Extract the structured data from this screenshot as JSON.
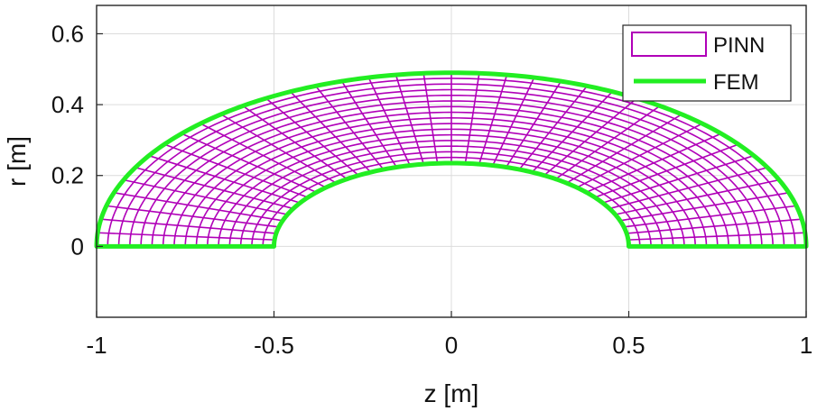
{
  "chart_data": {
    "type": "line",
    "xlabel": "z [m]",
    "ylabel": "r [m]",
    "xlim": [
      -1,
      1
    ],
    "ylim": [
      -0.2,
      0.68
    ],
    "xticks": [
      -1,
      -0.5,
      0,
      0.5,
      1
    ],
    "xtick_labels": [
      "-1",
      "-0.5",
      "0",
      "0.5",
      "1"
    ],
    "yticks": [
      0,
      0.2,
      0.4,
      0.6
    ],
    "ytick_labels": [
      "0",
      "0.2",
      "0.4",
      "0.6"
    ],
    "grid": true,
    "legend_position": "top-right",
    "colors": {
      "PINN": "#b000b8",
      "FEM": "#22ee22"
    },
    "series": [
      {
        "name": "PINN",
        "shape": "half-annulus mesh",
        "inner_radius": 0.5,
        "outer_radius": 1.0,
        "radial_lines": 40,
        "arc_lines": 16
      },
      {
        "name": "FEM",
        "shape": "half-annulus boundary",
        "inner_radius": 0.5,
        "outer_radius": 1.0,
        "inner_height": 0.235,
        "outer_height": 0.49
      }
    ]
  }
}
